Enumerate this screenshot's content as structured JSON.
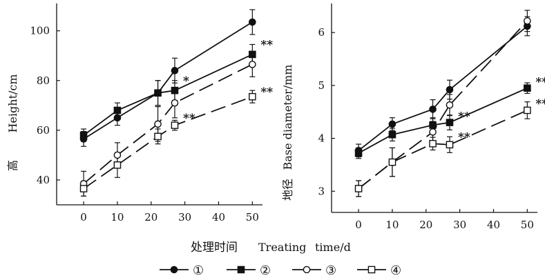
{
  "chart_data": [
    {
      "type": "line",
      "panel": "left",
      "ylabel_cn": "高",
      "ylabel_en": "Height/cm",
      "x": [
        0,
        10,
        22,
        27,
        50
      ],
      "xticks": [
        0,
        10,
        20,
        30,
        40,
        50
      ],
      "yticks": [
        40,
        60,
        80,
        100
      ],
      "xlim": [
        -8,
        53
      ],
      "ylim": [
        30,
        111
      ],
      "series": [
        {
          "name": "①",
          "values": [
            56.5,
            65,
            75,
            84,
            103.5
          ],
          "err": [
            3,
            3,
            5,
            5,
            5
          ],
          "marker": "filled-circle",
          "dash": "solid"
        },
        {
          "name": "②",
          "values": [
            58,
            68,
            75,
            76,
            90.5
          ],
          "err": [
            2.5,
            3,
            5,
            4,
            4
          ],
          "marker": "filled-square",
          "dash": "solid"
        },
        {
          "name": "③",
          "values": [
            38.5,
            50,
            62.5,
            71,
            86.5
          ],
          "err": [
            5,
            5,
            7,
            6,
            5
          ],
          "marker": "open-circle",
          "dash": "dashed"
        },
        {
          "name": "④",
          "values": [
            36.5,
            46,
            57.5,
            62,
            73.5
          ],
          "err": [
            3,
            5,
            3,
            2,
            2.5
          ],
          "marker": "open-square",
          "dash": "dashed"
        }
      ],
      "annotations": [
        {
          "text": "**",
          "x": 50,
          "y": 94.5
        },
        {
          "text": "*",
          "x": 27,
          "y": 80
        },
        {
          "text": "**",
          "x": 50,
          "y": 75.5
        },
        {
          "text": "**",
          "x": 27,
          "y": 65
        }
      ]
    },
    {
      "type": "line",
      "panel": "right",
      "ylabel_cn": "地径",
      "ylabel_en": "Base diameter/mm",
      "x": [
        0,
        10,
        22,
        27,
        50
      ],
      "xticks": [
        0,
        10,
        20,
        30,
        40,
        50
      ],
      "yticks": [
        3,
        4,
        5,
        6
      ],
      "xlim": [
        -8,
        53
      ],
      "ylim": [
        2.6,
        6.55
      ],
      "series": [
        {
          "name": "①",
          "values": [
            3.77,
            4.27,
            4.55,
            4.92,
            6.12
          ],
          "err": [
            0.12,
            0.12,
            0.18,
            0.18,
            0.18
          ],
          "marker": "filled-circle",
          "dash": "solid"
        },
        {
          "name": "②",
          "values": [
            3.72,
            4.07,
            4.25,
            4.3,
            4.95
          ],
          "err": [
            0.1,
            0.12,
            0.14,
            0.14,
            0.1
          ],
          "marker": "filled-square",
          "dash": "solid"
        },
        {
          "name": "③",
          "values": [
            3.05,
            3.55,
            4.12,
            4.63,
            6.22
          ],
          "err": [
            0.15,
            0.27,
            0.2,
            0.2,
            0.2
          ],
          "marker": "open-circle",
          "dash": "dashed"
        },
        {
          "name": "④",
          "values": [
            3.05,
            3.55,
            3.9,
            3.88,
            4.53
          ],
          "err": [
            0.15,
            0.27,
            0.12,
            0.15,
            0.16
          ],
          "marker": "open-square",
          "dash": "dashed"
        }
      ],
      "annotations": [
        {
          "text": "**",
          "x": 50,
          "y": 5.07
        },
        {
          "text": "**",
          "x": 27,
          "y": 4.42
        },
        {
          "text": "**",
          "x": 50,
          "y": 4.66
        },
        {
          "text": "**",
          "x": 27,
          "y": 4.03
        }
      ]
    }
  ],
  "xlabel_cn": "处理时间",
  "xlabel_en": "Treating",
  "xlabel_unit": "time/d",
  "legend": [
    "①",
    "②",
    "③",
    "④"
  ]
}
